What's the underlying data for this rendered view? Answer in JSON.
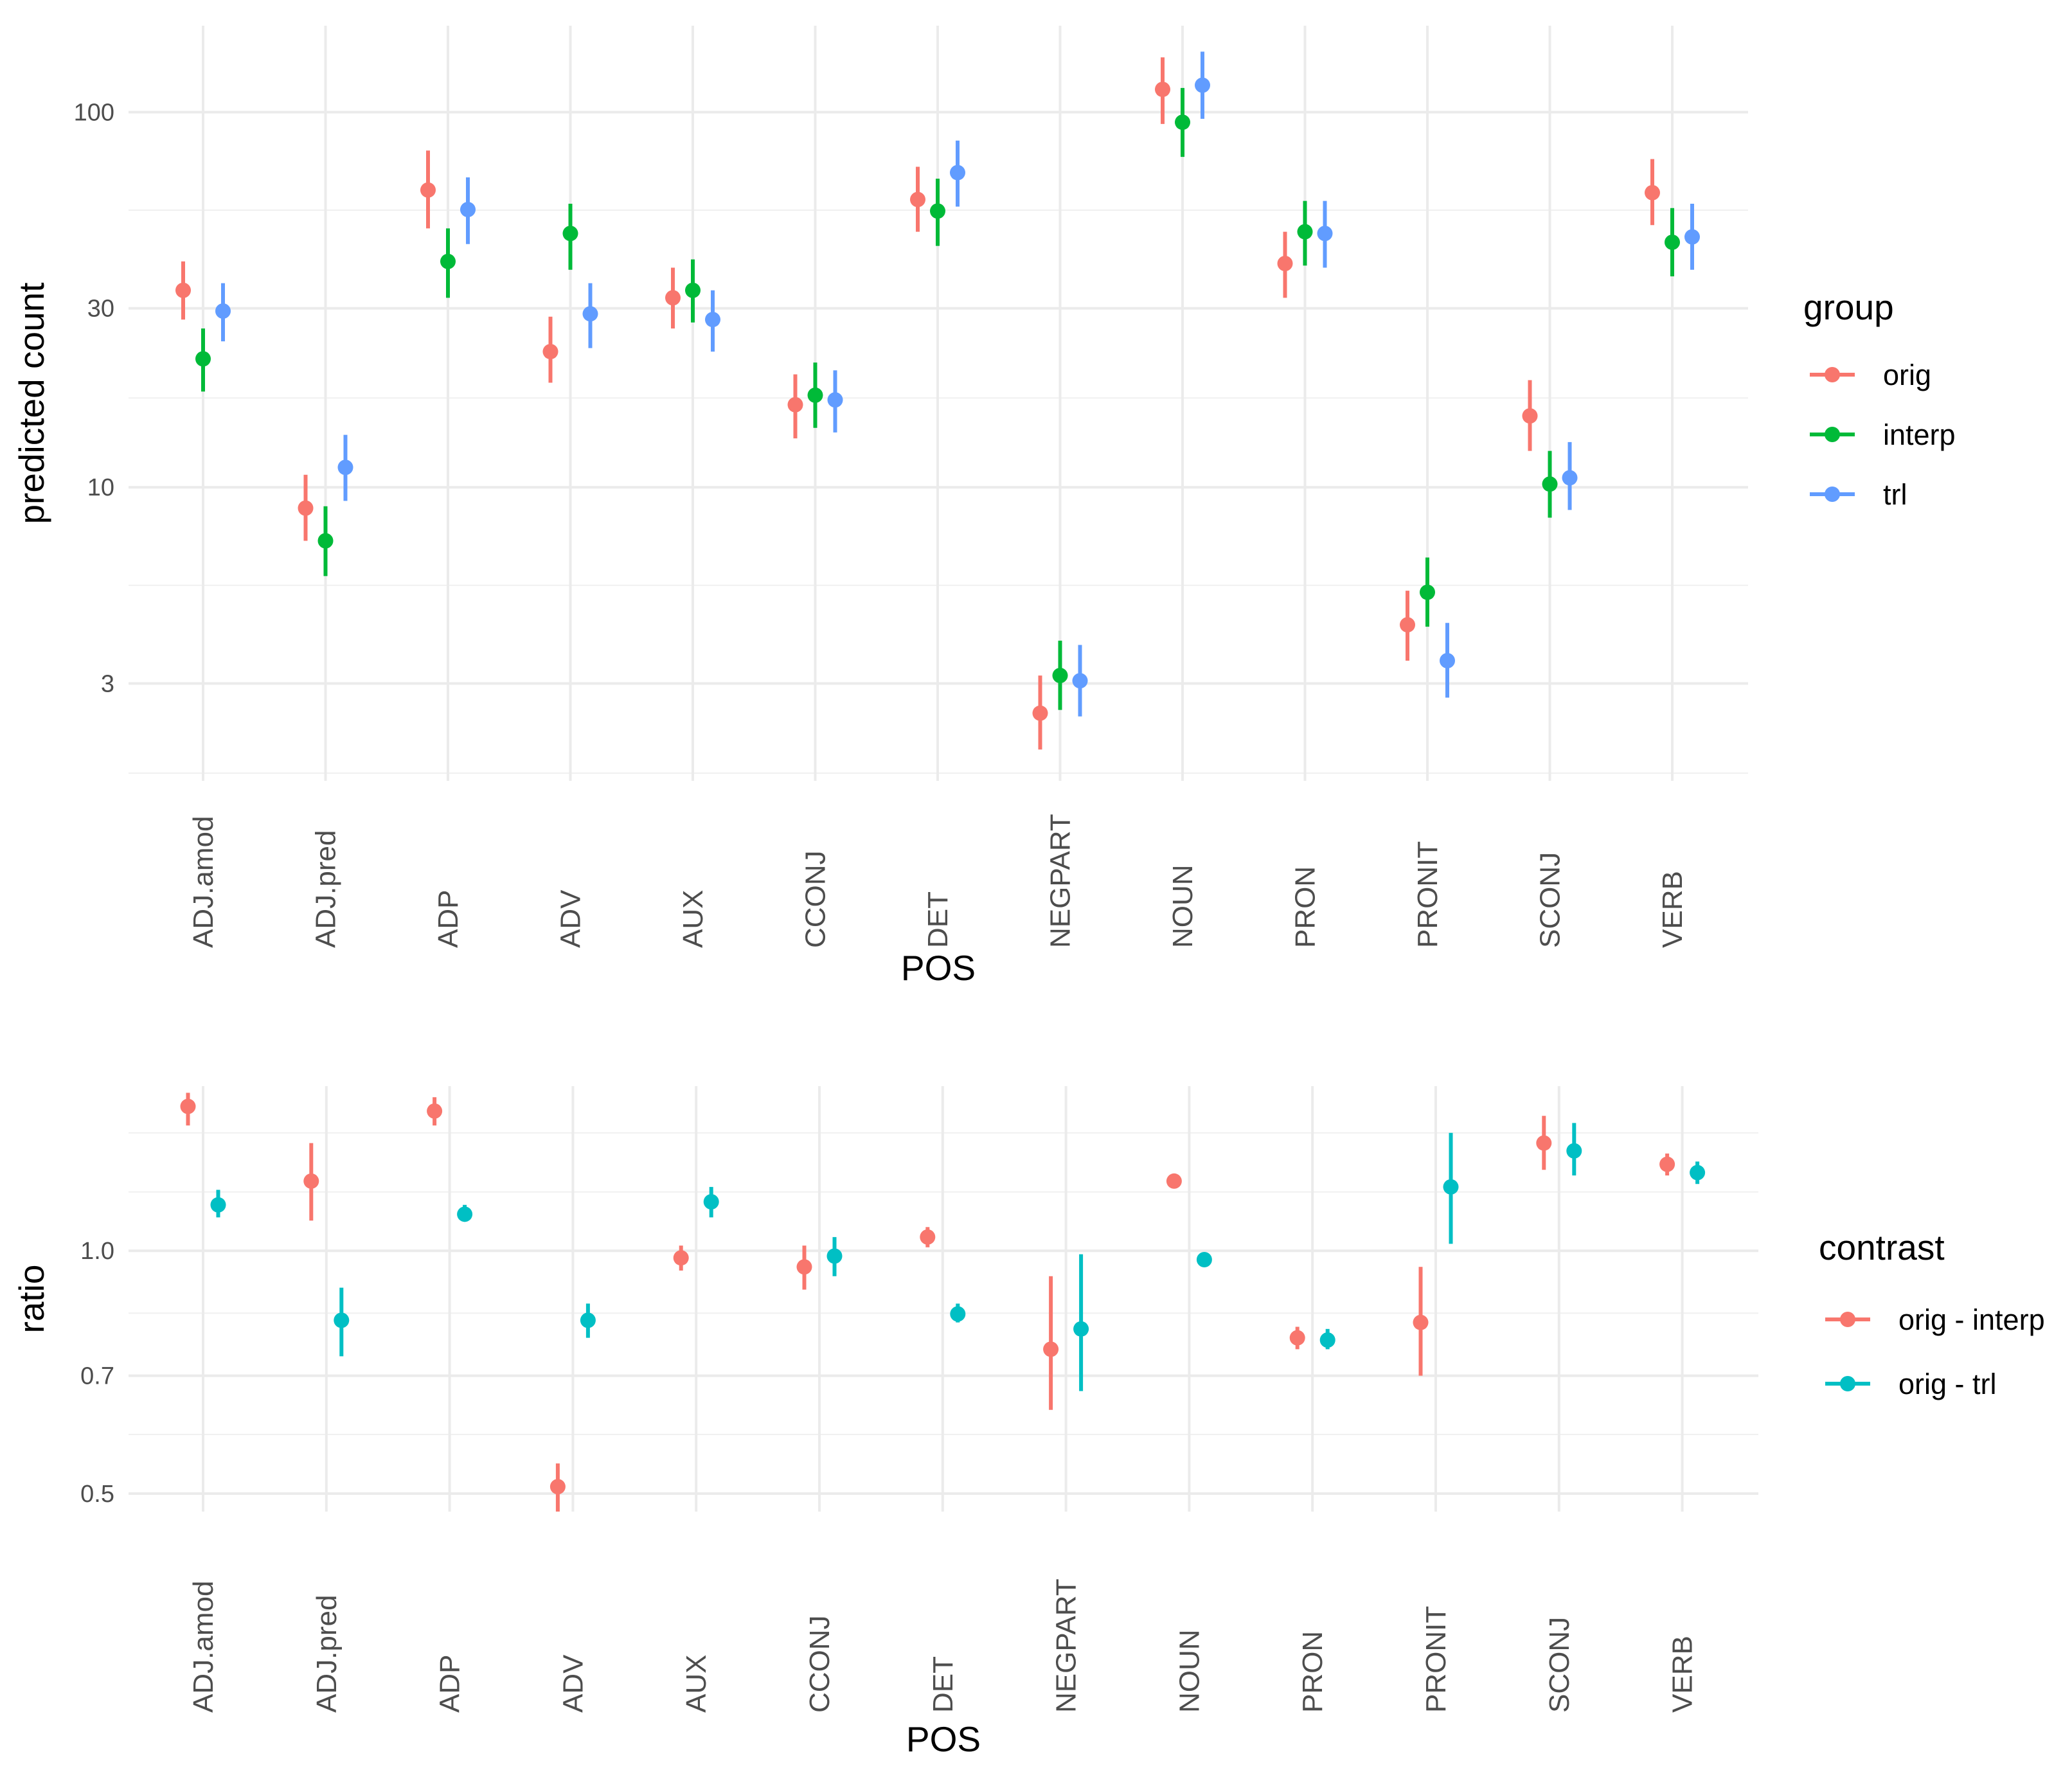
{
  "chart_data": [
    {
      "type": "pointrange",
      "xlabel": "POS",
      "ylabel": "predicted count",
      "yscale": "log",
      "ylim": [
        1.65,
        170
      ],
      "yticks": [
        3,
        10,
        30,
        100
      ],
      "ytick_labels": [
        "3",
        "10",
        "30",
        "100"
      ],
      "yminor": [
        1.73,
        5.48,
        17.3,
        54.8
      ],
      "grid": true,
      "legend_title": "group",
      "legend_position": "right",
      "categories": [
        "ADJ.amod",
        "ADJ.pred",
        "ADP",
        "ADV",
        "AUX",
        "CCONJ",
        "DET",
        "NEGPART",
        "NOUN",
        "PRON",
        "PRONIT",
        "SCONJ",
        "VERB"
      ],
      "series": [
        {
          "name": "orig",
          "color": "#F8766D",
          "values": [
            33.5,
            8.8,
            62,
            23,
            32,
            16.6,
            58.5,
            2.5,
            115,
            39.5,
            4.3,
            15.5,
            61
          ],
          "lower": [
            28,
            7.2,
            49,
            19,
            26.5,
            13.5,
            48,
            2.0,
            93,
            32,
            3.45,
            12.5,
            50
          ],
          "upper": [
            40,
            10.8,
            79,
            28.5,
            38.5,
            20,
            71.5,
            3.15,
            140,
            48,
            5.3,
            19.3,
            75
          ]
        },
        {
          "name": "interp",
          "color": "#00BA38",
          "values": [
            22,
            7.2,
            40,
            47.5,
            33.5,
            17.6,
            54.5,
            3.15,
            94,
            48,
            5.25,
            10.2,
            45
          ],
          "lower": [
            18,
            5.8,
            32,
            38,
            27.5,
            14.4,
            44,
            2.55,
            76,
            39,
            4.25,
            8.3,
            36.5
          ],
          "upper": [
            26.5,
            8.9,
            49,
            57,
            40.5,
            21.5,
            66.5,
            3.9,
            116,
            58,
            6.5,
            12.5,
            55.5
          ]
        },
        {
          "name": "trl",
          "color": "#619CFF",
          "values": [
            29.5,
            11.3,
            55,
            29,
            28,
            17.1,
            69,
            3.05,
            118,
            47.5,
            3.45,
            10.6,
            46.5
          ],
          "lower": [
            24.5,
            9.2,
            44.5,
            23.5,
            23,
            14,
            56,
            2.45,
            96,
            38.5,
            2.75,
            8.7,
            38
          ],
          "upper": [
            35,
            13.8,
            67,
            35,
            33.5,
            20.5,
            84,
            3.8,
            145,
            58,
            4.35,
            13.2,
            57
          ]
        }
      ]
    },
    {
      "type": "pointrange",
      "xlabel": "POS",
      "ylabel": "ratio",
      "yscale": "log",
      "ylim": [
        0.475,
        1.6
      ],
      "yticks": [
        0.5,
        0.7,
        1.0
      ],
      "ytick_labels": [
        "0.5",
        "0.7",
        "1.0"
      ],
      "yminor": [
        0.592,
        0.837,
        1.183,
        1.4
      ],
      "grid": true,
      "legend_title": "contrast",
      "legend_position": "right",
      "categories": [
        "ADJ.amod",
        "ADJ.pred",
        "ADP",
        "ADV",
        "AUX",
        "CCONJ",
        "DET",
        "NEGPART",
        "NOUN",
        "PRON",
        "PRONIT",
        "SCONJ",
        "VERB"
      ],
      "series": [
        {
          "name": "orig - interp",
          "color": "#F8766D",
          "values": [
            1.51,
            1.22,
            1.49,
            0.51,
            0.98,
            0.955,
            1.04,
            0.755,
            1.22,
            0.78,
            0.815,
            1.36,
            1.28
          ],
          "lower": [
            1.43,
            1.09,
            1.43,
            0.475,
            0.945,
            0.895,
            1.01,
            0.635,
            1.195,
            0.755,
            0.7,
            1.26,
            1.24
          ],
          "upper": [
            1.57,
            1.36,
            1.55,
            0.545,
            1.015,
            1.015,
            1.07,
            0.93,
            1.24,
            0.805,
            0.955,
            1.47,
            1.32
          ]
        },
        {
          "name": "orig - trl",
          "color": "#00BFC4",
          "values": [
            1.14,
            0.82,
            1.11,
            0.82,
            1.15,
            0.985,
            0.835,
            0.8,
            0.975,
            0.775,
            1.2,
            1.33,
            1.25
          ],
          "lower": [
            1.1,
            0.74,
            1.09,
            0.78,
            1.1,
            0.93,
            0.815,
            0.67,
            0.96,
            0.755,
            1.02,
            1.24,
            1.21
          ],
          "upper": [
            1.19,
            0.9,
            1.14,
            0.86,
            1.2,
            1.04,
            0.86,
            0.99,
            0.995,
            0.8,
            1.4,
            1.44,
            1.29
          ]
        }
      ]
    }
  ]
}
